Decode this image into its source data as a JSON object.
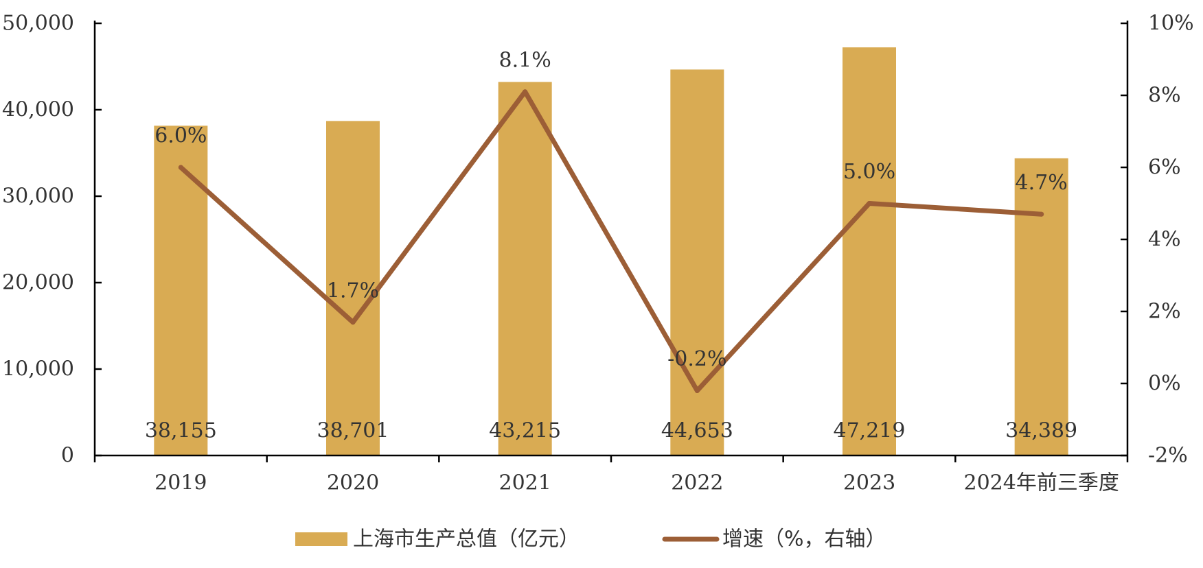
{
  "chart_data": {
    "type": "bar+line",
    "categories": [
      "2019",
      "2020",
      "2021",
      "2022",
      "2023",
      "2024年前三季度"
    ],
    "series": [
      {
        "name": "上海市生产总值（亿元）",
        "type": "bar",
        "axis": "left",
        "values": [
          38155,
          38701,
          43215,
          44653,
          47219,
          34389
        ],
        "labels": [
          "38,155",
          "38,701",
          "43,215",
          "44,653",
          "47,219",
          "34,389"
        ],
        "color": "#D9AB53"
      },
      {
        "name": "增速（%，右轴）",
        "type": "line",
        "axis": "right",
        "values": [
          6.0,
          1.7,
          8.1,
          -0.2,
          5.0,
          4.7
        ],
        "labels": [
          "6.0%",
          "1.7%",
          "8.1%",
          "-0.2%",
          "5.0%",
          "4.7%"
        ],
        "color": "#9C5E36"
      }
    ],
    "y_left": {
      "ylim": [
        0,
        50000
      ],
      "ticks": [
        0,
        10000,
        20000,
        30000,
        40000,
        50000
      ],
      "tick_labels": [
        "0",
        "10,000",
        "20,000",
        "30,000",
        "40,000",
        "50,000"
      ]
    },
    "y_right": {
      "ylim": [
        -2,
        10
      ],
      "ticks": [
        -2,
        0,
        2,
        4,
        6,
        8,
        10
      ],
      "tick_labels": [
        "-2%",
        "0%",
        "2%",
        "4%",
        "6%",
        "8%",
        "10%"
      ]
    },
    "grid": false,
    "legend": "bottom"
  }
}
